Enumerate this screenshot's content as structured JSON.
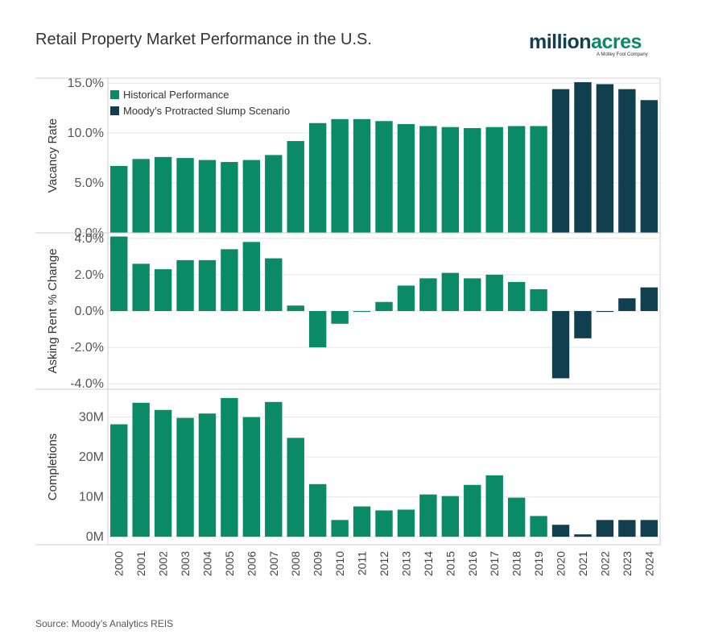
{
  "title": "Retail Property Market Performance in the U.S.",
  "logo": {
    "word_a": "million",
    "word_b": "acres",
    "tagline": "A Motley Fool Company"
  },
  "source": "Source: Moody’s Analytics REIS",
  "colors": {
    "historical": "#0a8a67",
    "scenario": "#123f4f"
  },
  "chart_data": [
    {
      "type": "bar",
      "ylabel": "Vacancy Rate",
      "ylim": [
        0,
        15.5
      ],
      "yticks": [
        "0.0%",
        "5.0%",
        "10.0%",
        "15.0%"
      ],
      "ytick_values": [
        0,
        5,
        10,
        15
      ],
      "categories": [
        "2000",
        "2001",
        "2002",
        "2003",
        "2004",
        "2005",
        "2006",
        "2007",
        "2008",
        "2009",
        "2010",
        "2011",
        "2012",
        "2013",
        "2014",
        "2015",
        "2016",
        "2017",
        "2018",
        "2019",
        "2020",
        "2021",
        "2022",
        "2023",
        "2024"
      ],
      "values": [
        6.7,
        7.4,
        7.6,
        7.5,
        7.3,
        7.1,
        7.3,
        7.8,
        9.2,
        11.0,
        11.4,
        11.4,
        11.2,
        10.9,
        10.7,
        10.6,
        10.5,
        10.6,
        10.7,
        10.7,
        14.4,
        15.1,
        14.9,
        14.4,
        13.3
      ],
      "series": [
        {
          "name": "Historical Performance",
          "range": [
            "2000",
            "2019"
          ]
        },
        {
          "name": "Moody’s Protracted Slump Scenario",
          "range": [
            "2020",
            "2024"
          ]
        }
      ],
      "legend": "top-left"
    },
    {
      "type": "bar",
      "ylabel": "Asking Rent % Change",
      "ylim": [
        -4.3,
        4.3
      ],
      "yticks": [
        "-4.0%",
        "-2.0%",
        "0.0%",
        "2.0%",
        "4.0%"
      ],
      "ytick_values": [
        -4,
        -2,
        0,
        2,
        4
      ],
      "categories": [
        "2000",
        "2001",
        "2002",
        "2003",
        "2004",
        "2005",
        "2006",
        "2007",
        "2008",
        "2009",
        "2010",
        "2011",
        "2012",
        "2013",
        "2014",
        "2015",
        "2016",
        "2017",
        "2018",
        "2019",
        "2020",
        "2021",
        "2022",
        "2023",
        "2024"
      ],
      "values": [
        4.1,
        2.6,
        2.3,
        2.8,
        2.8,
        3.4,
        3.8,
        2.9,
        0.3,
        -2.0,
        -0.7,
        -0.05,
        0.5,
        1.4,
        1.8,
        2.1,
        1.8,
        2.0,
        1.6,
        1.2,
        -3.7,
        -1.5,
        -0.05,
        0.7,
        1.3
      ]
    },
    {
      "type": "bar",
      "ylabel": "Completions",
      "ylim": [
        -2,
        37
      ],
      "yticks": [
        "0M",
        "10M",
        "20M",
        "30M"
      ],
      "ytick_values": [
        0,
        10,
        20,
        30
      ],
      "categories": [
        "2000",
        "2001",
        "2002",
        "2003",
        "2004",
        "2005",
        "2006",
        "2007",
        "2008",
        "2009",
        "2010",
        "2011",
        "2012",
        "2013",
        "2014",
        "2015",
        "2016",
        "2017",
        "2018",
        "2019",
        "2020",
        "2021",
        "2022",
        "2023",
        "2024"
      ],
      "values": [
        28.2,
        33.6,
        31.8,
        29.8,
        30.9,
        34.8,
        30.0,
        33.8,
        24.8,
        13.2,
        4.2,
        7.6,
        6.6,
        6.8,
        10.6,
        10.2,
        13.0,
        15.4,
        9.8,
        5.2,
        3.0,
        0.6,
        4.2,
        4.2,
        4.2
      ],
      "xlabels": [
        "2000",
        "2001",
        "2002",
        "2003",
        "2004",
        "2005",
        "2006",
        "2007",
        "2008",
        "2009",
        "2010",
        "2011",
        "2012",
        "2013",
        "2014",
        "2015",
        "2016",
        "2017",
        "2018",
        "2019",
        "2020",
        "2021",
        "2022",
        "2023",
        "2024"
      ]
    }
  ]
}
